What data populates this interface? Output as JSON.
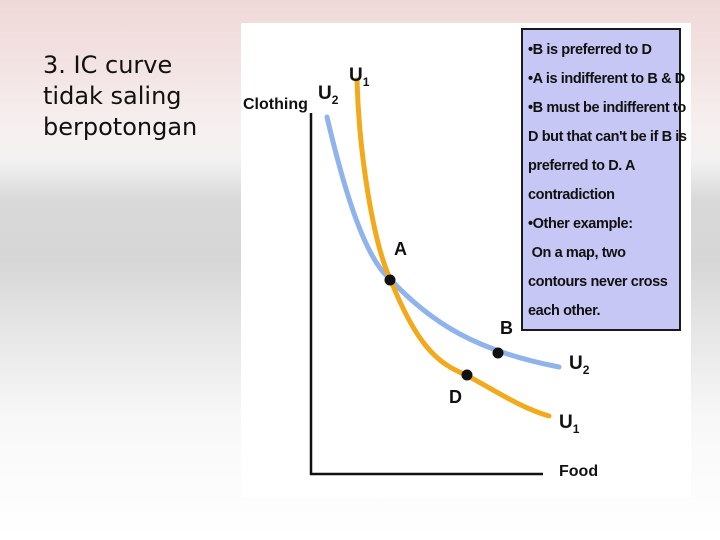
{
  "slide": {
    "title_lines": [
      "3. IC curve",
      "tidak saling",
      "berpotongan"
    ]
  },
  "diagram": {
    "y_axis_label": "Clothing",
    "x_axis_label": "Food",
    "curves": [
      {
        "name": "U",
        "subscript": "2",
        "color": "#8fb3ea"
      },
      {
        "name": "U",
        "subscript": "1",
        "color": "#f2a91c"
      }
    ],
    "points": [
      {
        "label": "A"
      },
      {
        "label": "B"
      },
      {
        "label": "D"
      }
    ]
  },
  "notes": {
    "lines": [
      "•B is preferred to D",
      "•A is indifferent to B & D",
      "•B must be indifferent to",
      "D but that can't be if B is",
      "preferred to D. A",
      "contradiction",
      "•Other example:",
      " On a map, two",
      "contours never cross",
      "each other."
    ]
  }
}
